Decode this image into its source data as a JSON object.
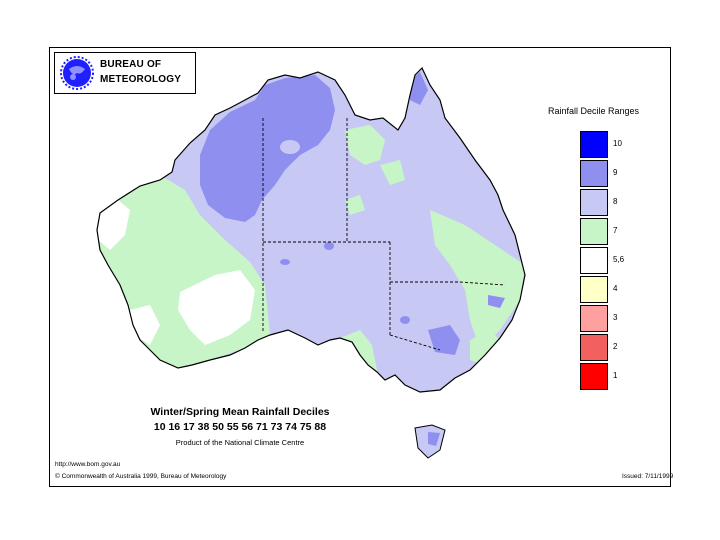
{
  "header": {
    "logo_line1": "BUREAU OF",
    "logo_line2": "METEOROLOGY",
    "logo_icon": "bom-globe-icon"
  },
  "legend": {
    "title": "Rainfall Decile Ranges",
    "items": [
      {
        "label": "10",
        "color": "#0000ff"
      },
      {
        "label": "9",
        "color": "#8f8ff0"
      },
      {
        "label": "8",
        "color": "#c8c8f5"
      },
      {
        "label": "7",
        "color": "#c8f5c8"
      },
      {
        "label": "5,6",
        "color": "#ffffff"
      },
      {
        "label": "4",
        "color": "#ffffc8"
      },
      {
        "label": "3",
        "color": "#ffa0a0"
      },
      {
        "label": "2",
        "color": "#f26060"
      },
      {
        "label": "1",
        "color": "#ff0000"
      }
    ]
  },
  "titles": {
    "main": "Winter/Spring Mean Rainfall Deciles",
    "years": "10 16 17 38 50 55 56 71 73 74 75 88",
    "product": "Product of the National Climate Centre"
  },
  "footer": {
    "url": "http://www.bom.gov.au",
    "copyright": "© Commonwealth of Australia 1999, Bureau of Meteorology",
    "issued": "Issued: 7/11/1999"
  }
}
